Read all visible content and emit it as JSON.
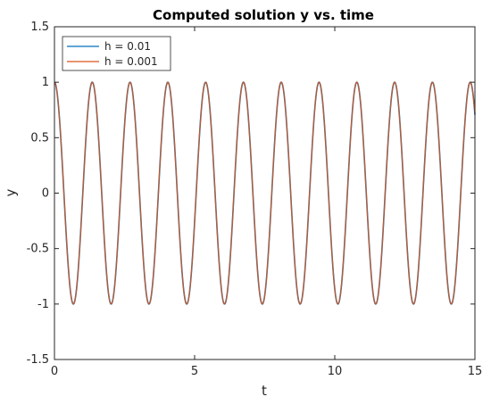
{
  "chart_data": {
    "type": "line",
    "title": "Computed solution y vs. time",
    "xlabel": "t",
    "ylabel": "y",
    "xlim": [
      0,
      15
    ],
    "ylim": [
      -1.5,
      1.5
    ],
    "xticks": [
      0,
      5,
      10,
      15
    ],
    "yticks": [
      -1.5,
      -1,
      -0.5,
      0,
      0.5,
      1,
      1.5
    ],
    "xtick_labels": [
      "0",
      "5",
      "10",
      "15"
    ],
    "ytick_labels": [
      "-1.5",
      "-1",
      "-0.5",
      "0",
      "0.5",
      "1",
      "1.5"
    ],
    "grid": false,
    "legend_position": "top-left",
    "function": "y = cos(omega t)",
    "omega": 4.66,
    "series": [
      {
        "name": "h = 0.01",
        "step": 0.01,
        "color": "#0072BD"
      },
      {
        "name": "h = 0.001",
        "step": 0.001,
        "color": "#D95319"
      }
    ]
  }
}
